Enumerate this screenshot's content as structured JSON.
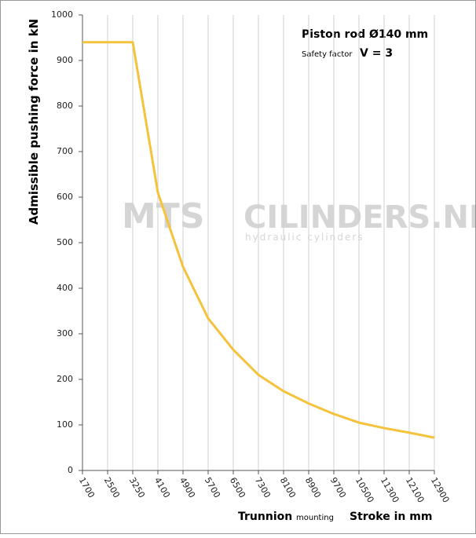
{
  "chart_data": {
    "type": "line",
    "title": "Piston rod Ø140 mm",
    "annotations": [
      "Safety factor",
      "V = 3"
    ],
    "watermark": [
      "MTS",
      "CILINDERS.NL",
      "hydraulic  cylinders"
    ],
    "y_label": "Admissible pushing  force in kN",
    "x_label": [
      "Trunnion",
      "mounting",
      "Stroke in mm"
    ],
    "categories": [
      "1700",
      "2500",
      "3250",
      "4100",
      "4900",
      "5700",
      "6500",
      "7300",
      "8100",
      "8900",
      "9700",
      "10500",
      "11300",
      "12100",
      "12900"
    ],
    "values": [
      940,
      940,
      940,
      610,
      447,
      334,
      265,
      210,
      174,
      147,
      124,
      105,
      93,
      83,
      72
    ],
    "color": "#f5c23c",
    "ylim": [
      0,
      1000
    ],
    "yticks": [
      0,
      100,
      200,
      300,
      400,
      500,
      600,
      700,
      800,
      900,
      1000
    ],
    "grid": true
  }
}
